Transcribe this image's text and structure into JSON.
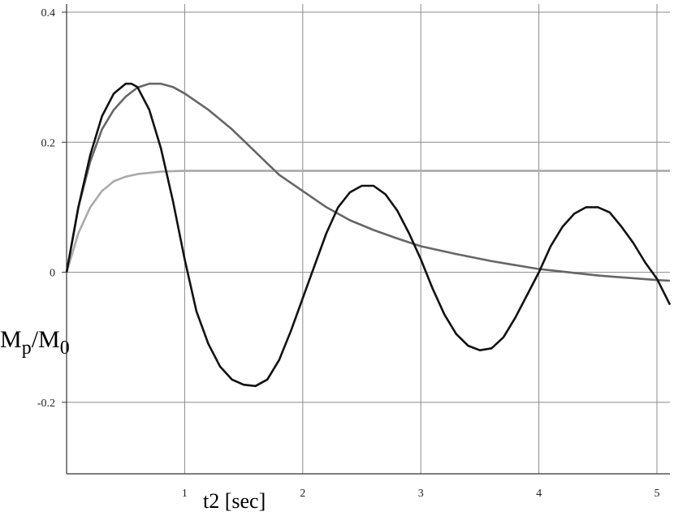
{
  "chart_data": {
    "type": "line",
    "x_label": "t2 [sec]",
    "y_label": [
      "M",
      "p",
      "/M",
      "0"
    ],
    "xlim": [
      0,
      5.11
    ],
    "ylim": [
      -0.31,
      0.41
    ],
    "xticks": [
      1,
      2,
      3,
      4,
      5
    ],
    "yticks": [
      -0.2,
      0,
      0.2,
      0.4
    ],
    "grid": true,
    "series": [
      {
        "color": "#111111",
        "x": [
          0,
          0.1,
          0.2,
          0.3,
          0.4,
          0.5,
          0.55,
          0.6,
          0.7,
          0.8,
          0.9,
          1.0,
          1.1,
          1.2,
          1.3,
          1.4,
          1.5,
          1.6,
          1.7,
          1.8,
          1.9,
          2.0,
          2.1,
          2.2,
          2.3,
          2.4,
          2.5,
          2.6,
          2.7,
          2.8,
          2.9,
          3.0,
          3.1,
          3.2,
          3.3,
          3.4,
          3.5,
          3.6,
          3.7,
          3.8,
          3.9,
          4.0,
          4.1,
          4.2,
          4.3,
          4.4,
          4.5,
          4.6,
          4.7,
          4.8,
          4.9,
          5.0,
          5.11
        ],
        "values": [
          0,
          0.1,
          0.18,
          0.24,
          0.275,
          0.29,
          0.29,
          0.285,
          0.25,
          0.19,
          0.11,
          0.02,
          -0.06,
          -0.11,
          -0.145,
          -0.165,
          -0.173,
          -0.175,
          -0.165,
          -0.135,
          -0.09,
          -0.04,
          0.01,
          0.06,
          0.1,
          0.123,
          0.133,
          0.133,
          0.12,
          0.095,
          0.06,
          0.02,
          -0.025,
          -0.065,
          -0.095,
          -0.113,
          -0.12,
          -0.117,
          -0.1,
          -0.07,
          -0.035,
          0,
          0.04,
          0.07,
          0.09,
          0.1,
          0.1,
          0.092,
          0.07,
          0.045,
          0.015,
          -0.01,
          -0.05
        ]
      },
      {
        "color": "#666666",
        "x": [
          0,
          0.1,
          0.2,
          0.3,
          0.4,
          0.5,
          0.6,
          0.7,
          0.8,
          0.9,
          1.0,
          1.2,
          1.4,
          1.6,
          1.8,
          2.0,
          2.2,
          2.4,
          2.6,
          2.8,
          3.0,
          3.3,
          3.6,
          4.0,
          4.5,
          5.0,
          5.11
        ],
        "values": [
          0,
          0.1,
          0.17,
          0.22,
          0.25,
          0.27,
          0.284,
          0.29,
          0.29,
          0.285,
          0.275,
          0.25,
          0.22,
          0.185,
          0.15,
          0.125,
          0.1,
          0.08,
          0.065,
          0.052,
          0.04,
          0.028,
          0.017,
          0.005,
          -0.005,
          -0.012,
          -0.013
        ]
      },
      {
        "color": "#aaaaaa",
        "x": [
          0,
          0.1,
          0.2,
          0.3,
          0.4,
          0.5,
          0.6,
          0.8,
          1.0,
          2.0,
          3.0,
          4.0,
          5.11
        ],
        "values": [
          0,
          0.06,
          0.1,
          0.125,
          0.14,
          0.147,
          0.151,
          0.155,
          0.156,
          0.156,
          0.156,
          0.156,
          0.156
        ]
      }
    ]
  }
}
